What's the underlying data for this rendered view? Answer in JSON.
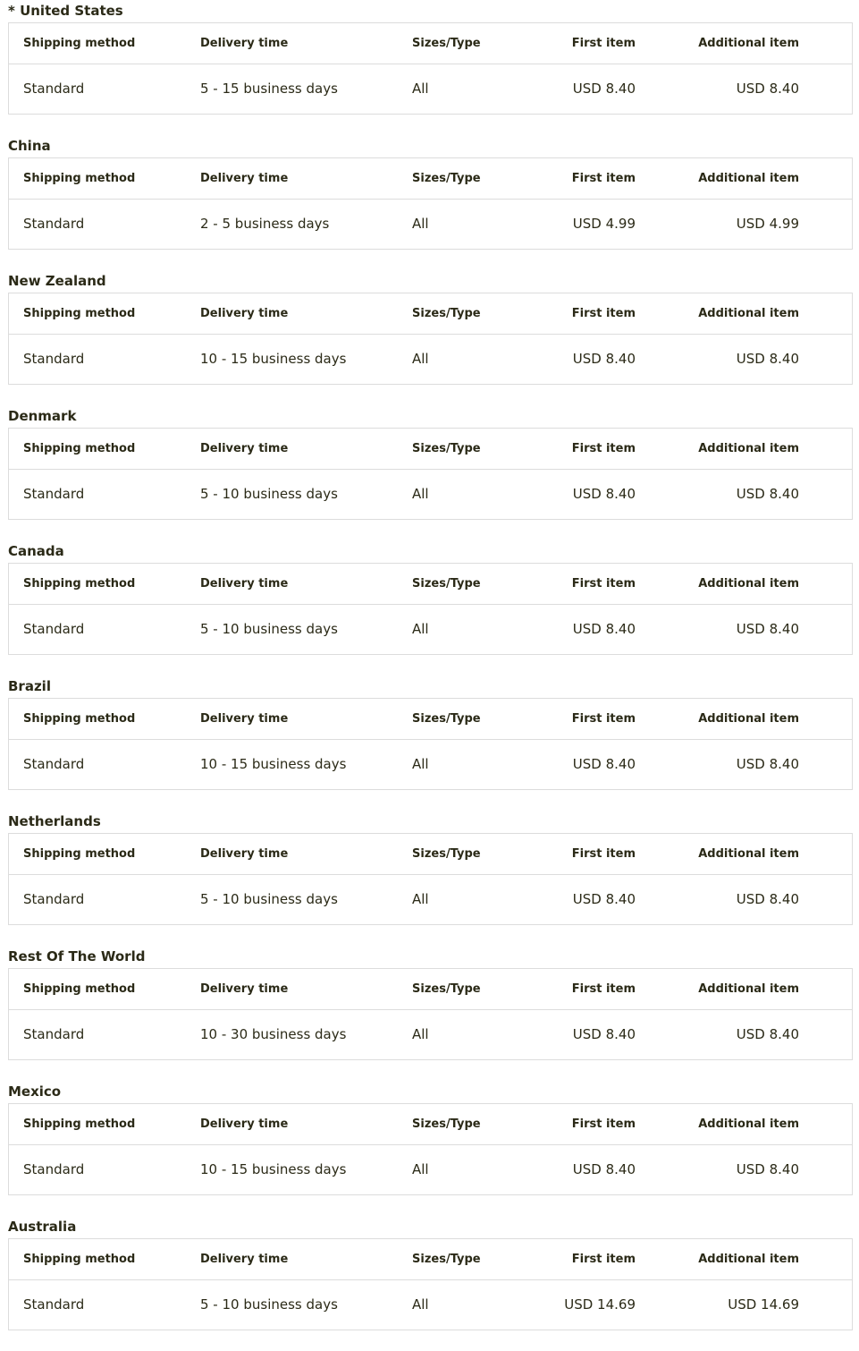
{
  "sections": [
    {
      "title": "* United States",
      "columns": [
        "Shipping method",
        "Delivery time",
        "Sizes/Type",
        "First item",
        "Additional item"
      ],
      "rows": [
        [
          "Standard",
          "5 - 15 business days",
          "All",
          "USD 8.40",
          "USD 8.40"
        ]
      ]
    },
    {
      "title": "China",
      "columns": [
        "Shipping method",
        "Delivery time",
        "Sizes/Type",
        "First item",
        "Additional item"
      ],
      "rows": [
        [
          "Standard",
          "2 - 5 business days",
          "All",
          "USD 4.99",
          "USD 4.99"
        ]
      ]
    },
    {
      "title": "New Zealand",
      "columns": [
        "Shipping method",
        "Delivery time",
        "Sizes/Type",
        "First item",
        "Additional item"
      ],
      "rows": [
        [
          "Standard",
          "10 - 15 business days",
          "All",
          "USD 8.40",
          "USD 8.40"
        ]
      ]
    },
    {
      "title": "Denmark",
      "columns": [
        "Shipping method",
        "Delivery time",
        "Sizes/Type",
        "First item",
        "Additional item"
      ],
      "rows": [
        [
          "Standard",
          "5 - 10 business days",
          "All",
          "USD 8.40",
          "USD 8.40"
        ]
      ]
    },
    {
      "title": "Canada",
      "columns": [
        "Shipping method",
        "Delivery time",
        "Sizes/Type",
        "First item",
        "Additional item"
      ],
      "rows": [
        [
          "Standard",
          "5 - 10 business days",
          "All",
          "USD 8.40",
          "USD 8.40"
        ]
      ]
    },
    {
      "title": "Brazil",
      "columns": [
        "Shipping method",
        "Delivery time",
        "Sizes/Type",
        "First item",
        "Additional item"
      ],
      "rows": [
        [
          "Standard",
          "10 - 15 business days",
          "All",
          "USD 8.40",
          "USD 8.40"
        ]
      ]
    },
    {
      "title": "Netherlands",
      "columns": [
        "Shipping method",
        "Delivery time",
        "Sizes/Type",
        "First item",
        "Additional item"
      ],
      "rows": [
        [
          "Standard",
          "5 - 10 business days",
          "All",
          "USD 8.40",
          "USD 8.40"
        ]
      ]
    },
    {
      "title": "Rest Of The World",
      "columns": [
        "Shipping method",
        "Delivery time",
        "Sizes/Type",
        "First item",
        "Additional item"
      ],
      "rows": [
        [
          "Standard",
          "10 - 30 business days",
          "All",
          "USD 8.40",
          "USD 8.40"
        ]
      ]
    },
    {
      "title": "Mexico",
      "columns": [
        "Shipping method",
        "Delivery time",
        "Sizes/Type",
        "First item",
        "Additional item"
      ],
      "rows": [
        [
          "Standard",
          "10 - 15 business days",
          "All",
          "USD 8.40",
          "USD 8.40"
        ]
      ]
    },
    {
      "title": "Australia",
      "columns": [
        "Shipping method",
        "Delivery time",
        "Sizes/Type",
        "First item",
        "Additional item"
      ],
      "rows": [
        [
          "Standard",
          "5 - 10 business days",
          "All",
          "USD 14.69",
          "USD 14.69"
        ]
      ]
    }
  ]
}
